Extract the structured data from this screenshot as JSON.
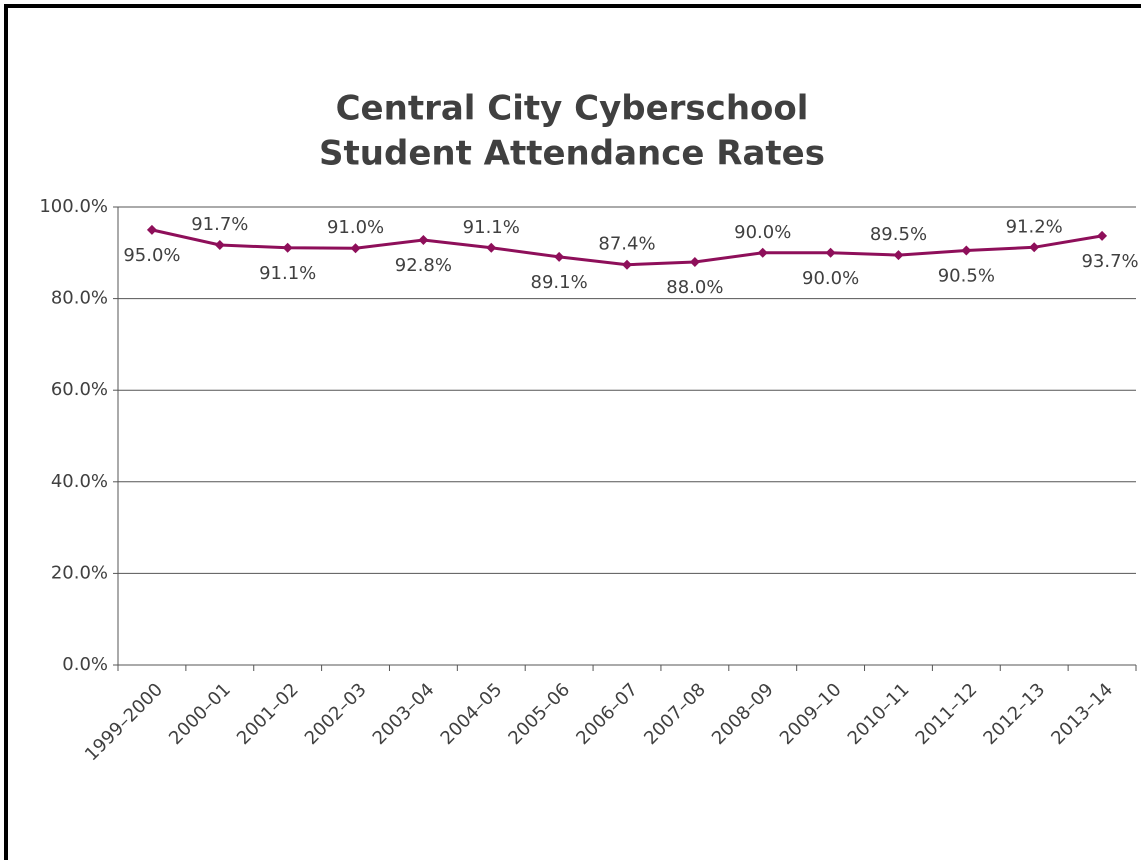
{
  "chart_data": {
    "type": "line",
    "title": [
      "Central City Cyberschool",
      "Student Attendance Rates"
    ],
    "categories": [
      "1999–2000",
      "2000–01",
      "2001–02",
      "2002–03",
      "2003–04",
      "2004–05",
      "2005–06",
      "2006–07",
      "2007–08",
      "2008–09",
      "2009–10",
      "2010–11",
      "2011–12",
      "2012–13",
      "2013–14"
    ],
    "series": [
      {
        "color": "#8e0f5a",
        "values": [
          95.0,
          91.7,
          91.1,
          91.0,
          92.8,
          91.1,
          89.1,
          87.4,
          88.0,
          90.0,
          90.0,
          89.5,
          90.5,
          91.2,
          93.7
        ],
        "value_labels": [
          "95.0%",
          "91.7%",
          "91.1%",
          "91.0%",
          "92.8%",
          "91.1%",
          "89.1%",
          "87.4%",
          "88.0%",
          "90.0%",
          "90.0%",
          "89.5%",
          "90.5%",
          "91.2%",
          "93.7%"
        ]
      }
    ],
    "ylim": [
      0,
      100
    ],
    "yticks": [
      {
        "value": 0,
        "label": "0.0%"
      },
      {
        "value": 20,
        "label": "20.0%"
      },
      {
        "value": 40,
        "label": "40.0%"
      },
      {
        "value": 60,
        "label": "60.0%"
      },
      {
        "value": 80,
        "label": "80.0%"
      },
      {
        "value": 100,
        "label": "100.0%"
      }
    ],
    "grid": true
  }
}
